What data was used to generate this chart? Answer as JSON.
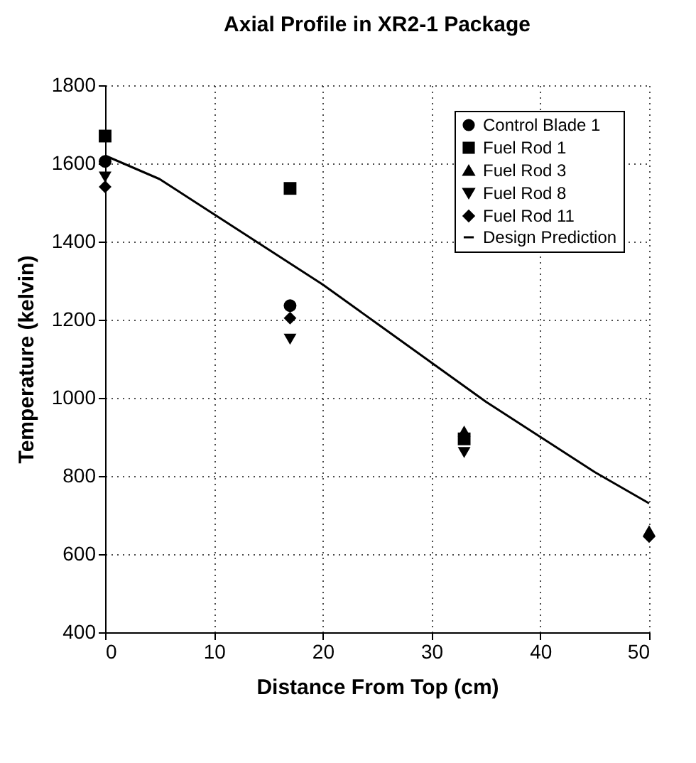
{
  "chart_data": {
    "type": "scatter",
    "title": "Axial Profile in XR2-1 Package",
    "xlabel": "Distance From Top (cm)",
    "ylabel": "Temperature (kelvin)",
    "xlim": [
      0,
      50
    ],
    "xticks": [
      0,
      10,
      20,
      30,
      40,
      50
    ],
    "ylim": [
      400,
      1800
    ],
    "yticks": [
      400,
      600,
      800,
      1000,
      1200,
      1400,
      1600,
      1800
    ],
    "grid": true,
    "legend": "top right",
    "x": [
      0,
      17,
      33,
      50
    ],
    "series": [
      {
        "name": "Control Blade 1",
        "color": "#000000",
        "marker": "circle",
        "values": [
          1605,
          1236,
          null,
          null
        ]
      },
      {
        "name": "Fuel Rod 1",
        "color": "#000000",
        "marker": "square",
        "values": [
          1670,
          1536,
          895,
          null
        ]
      },
      {
        "name": "Fuel Rod 3",
        "color": "#000000",
        "marker": "triangle",
        "values": [
          null,
          null,
          915,
          660
        ]
      },
      {
        "name": "Fuel Rod 8",
        "color": "#000000",
        "marker": "triangle-down",
        "values": [
          1565,
          1150,
          860,
          null
        ]
      },
      {
        "name": "Fuel Rod 11",
        "color": "#000000",
        "marker": "diamond",
        "values": [
          1540,
          1204,
          null,
          645
        ]
      },
      {
        "name": "Design Prediction",
        "type": "line",
        "color": "#000000",
        "x": [
          0,
          5,
          10,
          15,
          20,
          25,
          30,
          35,
          40,
          45,
          50
        ],
        "values": [
          1620,
          1560,
          1470,
          1380,
          1290,
          1190,
          1090,
          990,
          900,
          810,
          730
        ]
      }
    ]
  }
}
